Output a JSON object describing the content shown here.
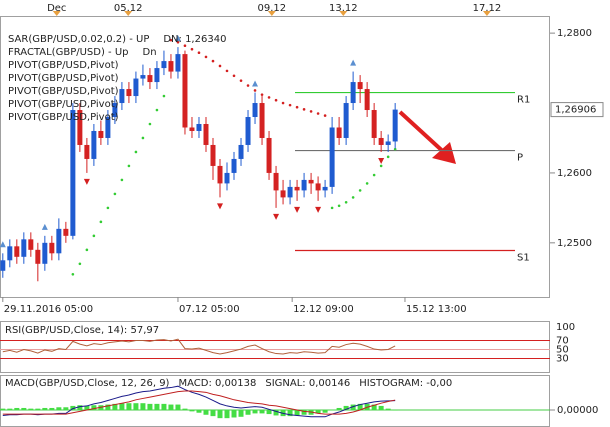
{
  "chart_data": [
    {
      "type": "candlestick",
      "legend": [
        [
          {
            "text": "SAR(GBP/USD,0.02,0.2)  -  UP",
            "color": "#d42020"
          },
          {
            "text": "DN: 1,26340",
            "color": "#22bb22"
          }
        ],
        [
          {
            "text": "FRACTAL(GBP/USD)  -  Up",
            "color": "#1f6fb0"
          },
          {
            "text": "Dn",
            "color": "#d42020"
          }
        ],
        [
          {
            "text": "PIVOT(GBP/USD,Pivot)",
            "color": "#000000"
          }
        ],
        [
          {
            "text": "PIVOT(GBP/USD,Pivot)",
            "color": "#000000"
          }
        ],
        [
          {
            "text": "PIVOT(GBP/USD,Pivot)",
            "color": "#000000"
          }
        ],
        [
          {
            "text": "PIVOT(GBP/USD,Pivot)",
            "color": "#000000"
          }
        ],
        [
          {
            "text": "PIVOT(GBP/USD,Pivot)",
            "color": "#000000"
          }
        ]
      ],
      "x": [
        0,
        1,
        2,
        3,
        4,
        5,
        6,
        7,
        8,
        9,
        10,
        11,
        12,
        13,
        14,
        15,
        16,
        17,
        18,
        19,
        20,
        21,
        22,
        23,
        24,
        25,
        26,
        27,
        28,
        29,
        30,
        31,
        32,
        33,
        34,
        35,
        36,
        37,
        38,
        39,
        40,
        41,
        42,
        43,
        44,
        45,
        46,
        47,
        48,
        49,
        50,
        51,
        52,
        53,
        54,
        55,
        56
      ],
      "open": [
        1.246,
        1.2475,
        1.2495,
        1.248,
        1.2505,
        1.249,
        1.247,
        1.25,
        1.2485,
        1.252,
        1.251,
        1.269,
        1.264,
        1.262,
        1.266,
        1.265,
        1.268,
        1.27,
        1.272,
        1.271,
        1.2735,
        1.274,
        1.273,
        1.275,
        1.276,
        1.2745,
        1.277,
        1.2665,
        1.266,
        1.267,
        1.264,
        1.261,
        1.2585,
        1.26,
        1.262,
        1.264,
        1.268,
        1.27,
        1.265,
        1.26,
        1.2575,
        1.2565,
        1.258,
        1.2575,
        1.259,
        1.2585,
        1.2575,
        1.258,
        1.2665,
        1.265,
        1.27,
        1.273,
        1.272,
        1.269,
        1.265,
        1.264,
        1.2645
      ],
      "high": [
        1.2485,
        1.2505,
        1.2505,
        1.2515,
        1.2515,
        1.25,
        1.251,
        1.251,
        1.2535,
        1.253,
        1.27,
        1.27,
        1.265,
        1.267,
        1.2675,
        1.269,
        1.271,
        1.273,
        1.273,
        1.2745,
        1.2755,
        1.275,
        1.276,
        1.2775,
        1.277,
        1.278,
        1.2775,
        1.268,
        1.268,
        1.268,
        1.265,
        1.262,
        1.2615,
        1.263,
        1.265,
        1.269,
        1.2715,
        1.271,
        1.266,
        1.261,
        1.259,
        1.259,
        1.259,
        1.26,
        1.26,
        1.2595,
        1.259,
        1.268,
        1.268,
        1.271,
        1.2745,
        1.274,
        1.273,
        1.27,
        1.266,
        1.2655,
        1.27
      ],
      "low": [
        1.245,
        1.2465,
        1.247,
        1.247,
        1.248,
        1.2445,
        1.246,
        1.2475,
        1.2475,
        1.25,
        1.2505,
        1.263,
        1.26,
        1.261,
        1.264,
        1.264,
        1.267,
        1.269,
        1.27,
        1.27,
        1.2725,
        1.272,
        1.272,
        1.274,
        1.2735,
        1.2735,
        1.2655,
        1.265,
        1.265,
        1.263,
        1.259,
        1.2565,
        1.2575,
        1.259,
        1.261,
        1.263,
        1.267,
        1.264,
        1.259,
        1.255,
        1.2555,
        1.2555,
        1.256,
        1.2565,
        1.257,
        1.256,
        1.2565,
        1.257,
        1.264,
        1.264,
        1.269,
        1.27,
        1.268,
        1.264,
        1.263,
        1.263,
        1.2635
      ],
      "close": [
        1.2475,
        1.2495,
        1.248,
        1.2505,
        1.249,
        1.247,
        1.25,
        1.2485,
        1.252,
        1.251,
        1.269,
        1.264,
        1.262,
        1.266,
        1.265,
        1.268,
        1.27,
        1.272,
        1.271,
        1.2735,
        1.274,
        1.273,
        1.275,
        1.276,
        1.2745,
        1.277,
        1.2665,
        1.266,
        1.267,
        1.264,
        1.261,
        1.2585,
        1.26,
        1.262,
        1.264,
        1.268,
        1.27,
        1.265,
        1.26,
        1.2575,
        1.2565,
        1.258,
        1.2575,
        1.259,
        1.2585,
        1.2575,
        1.258,
        1.2665,
        1.265,
        1.27,
        1.273,
        1.272,
        1.269,
        1.265,
        1.264,
        1.2645,
        1.26906
      ],
      "up_color": "#1f5bd0",
      "down_color": "#d42222",
      "sar": [
        null,
        null,
        null,
        null,
        null,
        null,
        null,
        null,
        null,
        null,
        1.2455,
        1.247,
        1.249,
        1.251,
        1.253,
        1.255,
        1.257,
        1.259,
        1.261,
        1.263,
        1.265,
        1.267,
        1.269,
        1.271,
        1.279,
        1.2787,
        1.2782,
        1.2777,
        1.2772,
        1.2766,
        1.276,
        1.2753,
        1.2746,
        1.2739,
        1.2732,
        1.2725,
        1.2718,
        1.2712,
        1.2708,
        1.2704,
        1.27,
        1.2697,
        1.2694,
        1.2691,
        1.2688,
        1.2685,
        1.2682,
        1.255,
        1.2553,
        1.2558,
        1.2565,
        1.2575,
        1.2585,
        1.2597,
        1.261,
        1.2623,
        1.2634
      ],
      "sar_above_color": "#d42020",
      "sar_below_color": "#33cc33",
      "fractals_up": [
        {
          "x": 0,
          "value": 1.2485
        },
        {
          "x": 6,
          "value": 1.251
        },
        {
          "x": 25,
          "value": 1.278
        },
        {
          "x": 36,
          "value": 1.2715
        },
        {
          "x": 50,
          "value": 1.2745
        }
      ],
      "fractals_down": [
        {
          "x": 12,
          "value": 1.26
        },
        {
          "x": 31,
          "value": 1.2565
        },
        {
          "x": 39,
          "value": 1.255
        },
        {
          "x": 42,
          "value": 1.256
        },
        {
          "x": 45,
          "value": 1.256
        },
        {
          "x": 54,
          "value": 1.263
        }
      ],
      "fractal_up_color": "#5b8fd0",
      "fractal_down_color": "#d42020",
      "pivots": [
        {
          "label": "R1",
          "value": 1.2715,
          "color": "#33cc33"
        },
        {
          "label": "P",
          "value": 1.2632,
          "color": "#707070"
        },
        {
          "label": "S1",
          "value": 1.2489,
          "color": "#d42020"
        }
      ],
      "xlim": [
        -0.4,
        78.1
      ],
      "xticks": [
        {
          "value": 0,
          "label": "29.11.2016 05:00"
        },
        {
          "value": 25,
          "label": "07.12 05:00"
        },
        {
          "value": 41.3,
          "label": "12.12 09:00"
        },
        {
          "value": 57.4,
          "label": "15.12 13:00"
        }
      ],
      "xticks_top": [
        {
          "value": 7.7,
          "label": "Dec"
        },
        {
          "value": 17.9,
          "label": "05.12"
        },
        {
          "value": 38.4,
          "label": "09.12"
        },
        {
          "value": 48.6,
          "label": "13.12"
        },
        {
          "value": 69.1,
          "label": "17.12"
        }
      ],
      "ylim": [
        1.24225,
        1.28245
      ],
      "yticks": [
        {
          "value": 1.28,
          "label": "1,2800"
        },
        {
          "value": 1.26,
          "label": "1,2600"
        },
        {
          "value": 1.25,
          "label": "1,2500"
        }
      ],
      "current_price": {
        "value": 1.26906,
        "label": "1,26906"
      }
    },
    {
      "type": "line",
      "title": "RSI(GBP/USD,Close, 14): 57,97",
      "values": [
        45,
        48,
        44,
        50,
        47,
        42,
        49,
        46,
        52,
        50,
        68,
        62,
        58,
        63,
        61,
        65,
        67,
        69,
        67,
        70,
        70,
        68,
        71,
        72,
        69,
        73,
        52,
        51,
        53,
        48,
        43,
        40,
        43,
        47,
        51,
        57,
        60,
        52,
        45,
        41,
        40,
        43,
        42,
        45,
        44,
        42,
        43,
        57,
        55,
        61,
        64,
        62,
        57,
        51,
        49,
        50,
        57.97
      ],
      "color": "#b0603a",
      "ylim": [
        0,
        100
      ],
      "yticks": [
        100,
        70,
        50,
        30
      ],
      "grid": true
    },
    {
      "type": "macd",
      "labels": [
        {
          "text": "MACD(GBP/USD,Close, 12, 26, 9)",
          "color": "#c02020"
        },
        {
          "text": "MACD: 0,00138",
          "color": "#c02020"
        },
        {
          "text": "SIGNAL: 0,00146",
          "color": "#1a1a8a"
        },
        {
          "text": "HISTOGRAM: -0,00",
          "color": "#22bb22"
        }
      ],
      "histogram": {
        "color": "#44dd44",
        "values": [
          0.0002,
          0.0002,
          0.0003,
          0.0003,
          0.0002,
          0.0002,
          0.0003,
          0.0003,
          0.0004,
          0.0004,
          0.0006,
          0.0007,
          0.0006,
          0.0007,
          0.0007,
          0.0008,
          0.0009,
          0.001,
          0.001,
          0.001,
          0.001,
          0.0009,
          0.0009,
          0.0009,
          0.0008,
          0.0008,
          0.0002,
          -0.0002,
          -0.0004,
          -0.0007,
          -0.0009,
          -0.0012,
          -0.0012,
          -0.0011,
          -0.001,
          -0.0007,
          -0.0005,
          -0.0005,
          -0.0006,
          -0.0008,
          -0.0009,
          -0.0009,
          -0.0008,
          -0.0007,
          -0.0007,
          -0.0005,
          -0.0004,
          0,
          0.0003,
          0.0006,
          0.0008,
          0.0009,
          0.0009,
          0.0008,
          0.0006,
          0.0002,
          -8e-05
        ]
      },
      "macd": {
        "color": "#1a1a8a",
        "values": [
          -0.0008,
          -0.0007,
          -0.0007,
          -0.0006,
          -0.0006,
          -0.0007,
          -0.0006,
          -0.0006,
          -0.0005,
          -0.0005,
          0.0002,
          0.0005,
          0.0006,
          0.0009,
          0.0011,
          0.0014,
          0.0017,
          0.002,
          0.0022,
          0.0025,
          0.0027,
          0.0028,
          0.003,
          0.0032,
          0.0033,
          0.0035,
          0.003,
          0.0026,
          0.0023,
          0.0019,
          0.0014,
          0.0009,
          0.0006,
          0.0004,
          0.0003,
          0.0004,
          0.0005,
          0.0004,
          0.0001,
          -0.0002,
          -0.0005,
          -0.0007,
          -0.0008,
          -0.0009,
          -0.001,
          -0.001,
          -0.001,
          -0.0006,
          -0.0003,
          0.0001,
          0.0005,
          0.0008,
          0.001,
          0.0012,
          0.0013,
          0.00135,
          0.00138
        ]
      },
      "signal": {
        "color": "#c02020",
        "values": [
          -0.0006,
          -0.0006,
          -0.0006,
          -0.0006,
          -0.0006,
          -0.0006,
          -0.0006,
          -0.0006,
          -0.0006,
          -0.0006,
          -0.0004,
          -0.0002,
          0,
          0.0002,
          0.0004,
          0.0006,
          0.0008,
          0.001,
          0.0012,
          0.0015,
          0.0017,
          0.0019,
          0.0021,
          0.0023,
          0.0025,
          0.0027,
          0.0028,
          0.0028,
          0.0027,
          0.0026,
          0.0023,
          0.0021,
          0.0018,
          0.0015,
          0.0013,
          0.0011,
          0.001,
          0.0009,
          0.0007,
          0.0006,
          0.0004,
          0.0002,
          0,
          -0.0002,
          -0.0003,
          -0.0005,
          -0.0006,
          -0.0006,
          -0.0006,
          -0.0005,
          -0.0003,
          0,
          0.0004,
          0.0007,
          0.001,
          0.00125,
          0.00146
        ]
      },
      "ylim": [
        -0.0025,
        0.005
      ],
      "yticks": [
        {
          "value": 0,
          "label": "0,00000"
        }
      ]
    }
  ]
}
